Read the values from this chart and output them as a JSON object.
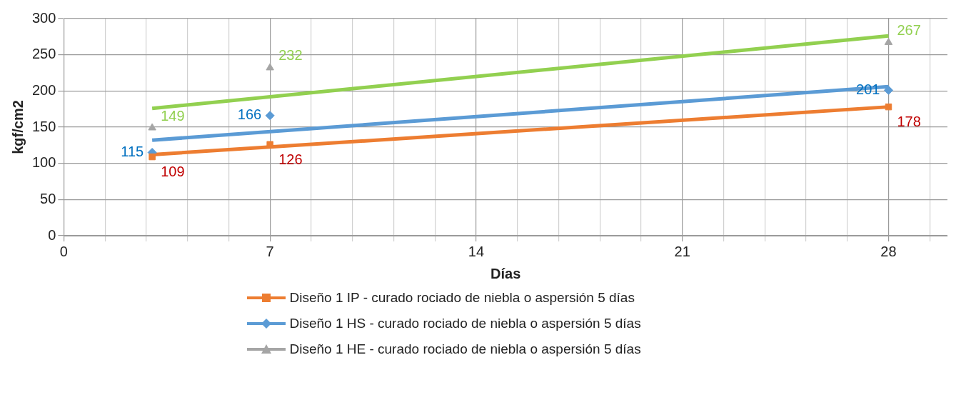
{
  "chart_data": {
    "type": "scatter",
    "xlabel": "Días",
    "ylabel": "kgf/cm2",
    "xlim": [
      0,
      30
    ],
    "xticks": [
      0,
      {
        "value": 1.4,
        "label": null
      },
      {
        "value": 2.8,
        "label": null
      },
      {
        "value": 4.2,
        "label": null
      },
      {
        "value": 5.6,
        "label": null
      },
      7,
      {
        "value": 8.4,
        "label": null
      },
      {
        "value": 9.8,
        "label": null
      },
      {
        "value": 11.2,
        "label": null
      },
      {
        "value": 12.6,
        "label": null
      },
      14,
      {
        "value": 15.4,
        "label": null
      },
      {
        "value": 16.8,
        "label": null
      },
      {
        "value": 18.2,
        "label": null
      },
      {
        "value": 19.6,
        "label": null
      },
      21,
      {
        "value": 22.4,
        "label": null
      },
      {
        "value": 23.8,
        "label": null
      },
      {
        "value": 25.2,
        "label": null
      },
      {
        "value": 26.6,
        "label": null
      },
      28,
      {
        "value": 29.4,
        "label": null
      }
    ],
    "ylim": [
      0,
      300
    ],
    "yticks": [
      0,
      50,
      100,
      150,
      200,
      250,
      300
    ],
    "grid": true,
    "legend": "bottom",
    "series": [
      {
        "name": "Diseño 1 IP - curado rociado de niebla o aspersión 5 días",
        "color": "#ed7d31",
        "marker": "square",
        "x": [
          3,
          7,
          28
        ],
        "values": [
          109,
          126,
          178
        ],
        "value_labels": [
          "109",
          "126",
          "178"
        ]
      },
      {
        "name": "Diseño 1 HS - curado rociado de niebla o aspersión 5 días",
        "color": "#5b9bd5",
        "marker": "diamond",
        "x": [
          3,
          7,
          28
        ],
        "values": [
          115,
          166,
          201
        ],
        "value_labels": [
          "115",
          "166",
          "201"
        ]
      },
      {
        "name": "Diseño 1 HE - curado rociado de niebla o aspersión 5 días",
        "color": "#a5a5a5",
        "marker": "triangle",
        "x": [
          3,
          7,
          28
        ],
        "values": [
          149,
          232,
          267
        ],
        "value_labels": [
          "149",
          "232",
          "267"
        ]
      },
      {
        "type": "line",
        "color": "#ed7d31",
        "marker": "none",
        "x": [
          3,
          28
        ],
        "values": [
          112,
          178
        ]
      },
      {
        "type": "line",
        "color": "#5b9bd5",
        "marker": "none",
        "x": [
          3,
          28
        ],
        "values": [
          132,
          206
        ]
      },
      {
        "type": "line",
        "color": "#92d050",
        "marker": "none",
        "x": [
          3,
          28
        ],
        "values": [
          176,
          276
        ]
      }
    ]
  }
}
